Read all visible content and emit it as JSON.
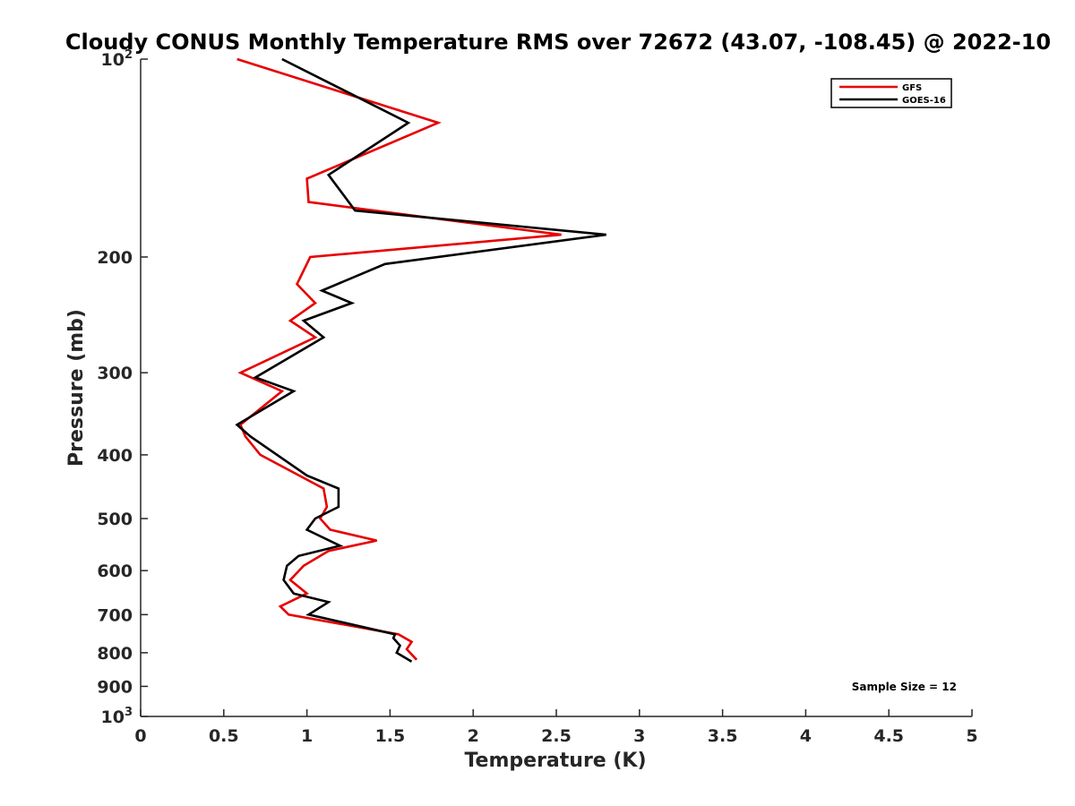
{
  "chart_data": {
    "type": "line",
    "title": "Cloudy CONUS Monthly Temperature RMS over 72672 (43.07, -108.45) @ 2022-10",
    "xlabel": "Temperature (K)",
    "ylabel": "Pressure (mb)",
    "xlim": [
      0,
      5
    ],
    "ylim": [
      100,
      1000
    ],
    "y_scale": "log",
    "y_reversed": true,
    "grid": false,
    "legend_position": "top-right",
    "x_ticks": [
      0,
      0.5,
      1,
      1.5,
      2,
      2.5,
      3,
      3.5,
      4,
      4.5,
      5
    ],
    "x_tick_labels": [
      "0",
      "0.5",
      "1",
      "1.5",
      "2",
      "2.5",
      "3",
      "3.5",
      "4",
      "4.5",
      "5"
    ],
    "y_ticks": [
      100,
      200,
      300,
      400,
      500,
      600,
      700,
      800,
      900,
      1000
    ],
    "y_tick_labels": [
      {
        "base": "10",
        "sup": "2"
      },
      {
        "base": "200",
        "sup": ""
      },
      {
        "base": "300",
        "sup": ""
      },
      {
        "base": "400",
        "sup": ""
      },
      {
        "base": "500",
        "sup": ""
      },
      {
        "base": "600",
        "sup": ""
      },
      {
        "base": "700",
        "sup": ""
      },
      {
        "base": "800",
        "sup": ""
      },
      {
        "base": "900",
        "sup": ""
      },
      {
        "base": "10",
        "sup": "3"
      }
    ],
    "series": [
      {
        "name": "GFS",
        "color": "#e60000",
        "x": [
          0.58,
          1.79,
          1.0,
          1.01,
          2.53,
          1.02,
          0.94,
          1.05,
          0.9,
          1.05,
          0.6,
          0.85,
          0.6,
          0.63,
          0.72,
          1.1,
          1.12,
          1.08,
          1.14,
          1.42,
          1.13,
          0.98,
          0.9,
          1.0,
          0.84,
          0.89,
          1.55,
          1.63,
          1.6,
          1.66
        ],
        "y": [
          100,
          125,
          152,
          165,
          185,
          200,
          220,
          235,
          250,
          265,
          300,
          320,
          360,
          375,
          400,
          450,
          480,
          500,
          520,
          540,
          560,
          590,
          620,
          650,
          680,
          700,
          750,
          770,
          790,
          820
        ]
      },
      {
        "name": "GOES-16",
        "color": "#000000",
        "x": [
          0.85,
          1.61,
          1.13,
          1.29,
          2.8,
          1.47,
          1.09,
          1.27,
          0.98,
          1.1,
          0.69,
          0.92,
          0.58,
          0.66,
          1.0,
          1.19,
          1.19,
          1.05,
          1.0,
          1.2,
          0.95,
          0.88,
          0.86,
          0.92,
          1.13,
          1.01,
          1.53,
          1.52,
          1.56,
          1.54,
          1.63
        ],
        "y": [
          100,
          125,
          150,
          170,
          185,
          205,
          225,
          235,
          250,
          265,
          305,
          320,
          360,
          375,
          430,
          450,
          480,
          500,
          520,
          550,
          570,
          590,
          620,
          650,
          670,
          700,
          750,
          760,
          780,
          800,
          825
        ]
      }
    ],
    "annotations": [
      "Sample Size = 12"
    ]
  }
}
